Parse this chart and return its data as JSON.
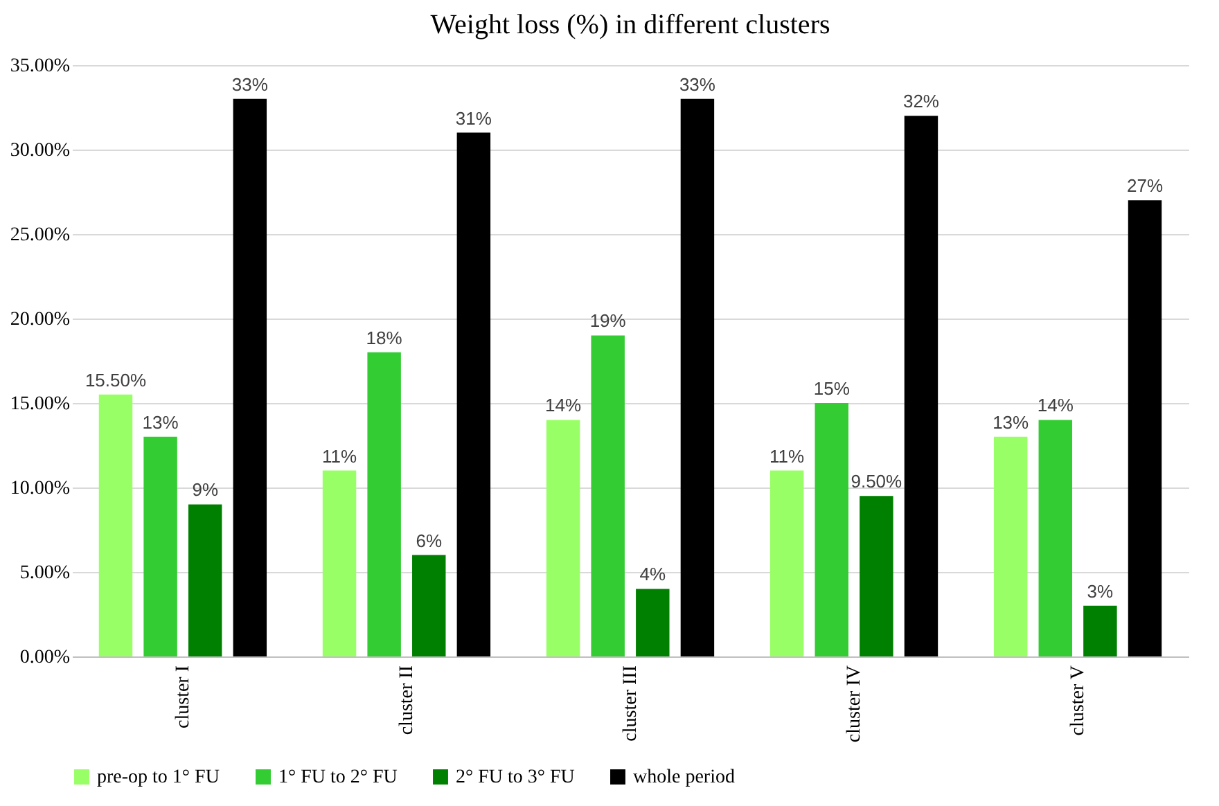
{
  "chart_data": {
    "type": "bar",
    "title": "Weight loss (%) in different clusters",
    "categories": [
      "cluster I",
      "cluster II",
      "cluster III",
      "cluster IV",
      "cluster V"
    ],
    "series": [
      {
        "name": "pre-op to 1° FU",
        "color": "#99ff66",
        "values": [
          15.5,
          11,
          14,
          11,
          13
        ],
        "value_labels": [
          "15.50%",
          "11%",
          "14%",
          "11%",
          "13%"
        ]
      },
      {
        "name": "1° FU to 2° FU",
        "color": "#33cc33",
        "values": [
          13,
          18,
          19,
          15,
          14
        ],
        "value_labels": [
          "13%",
          "18%",
          "19%",
          "15%",
          "14%"
        ]
      },
      {
        "name": "2° FU to 3° FU",
        "color": "#008000",
        "values": [
          9,
          6,
          4,
          9.5,
          3
        ],
        "value_labels": [
          "9%",
          "6%",
          "4%",
          "9.50%",
          "3%"
        ]
      },
      {
        "name": "whole period",
        "color": "#000000",
        "values": [
          33,
          31,
          33,
          32,
          27
        ],
        "value_labels": [
          "33%",
          "31%",
          "33%",
          "32%",
          "27%"
        ]
      }
    ],
    "ylim": [
      0,
      35
    ],
    "yticks": [
      {
        "value": 0,
        "label": "0.00%"
      },
      {
        "value": 5,
        "label": "5.00%"
      },
      {
        "value": 10,
        "label": "10.00%"
      },
      {
        "value": 15,
        "label": "15.00%"
      },
      {
        "value": 20,
        "label": "20.00%"
      },
      {
        "value": 25,
        "label": "25.00%"
      },
      {
        "value": 30,
        "label": "30.00%"
      },
      {
        "value": 35,
        "label": "35.00%"
      }
    ],
    "grid": "y",
    "legend": "bottom"
  }
}
